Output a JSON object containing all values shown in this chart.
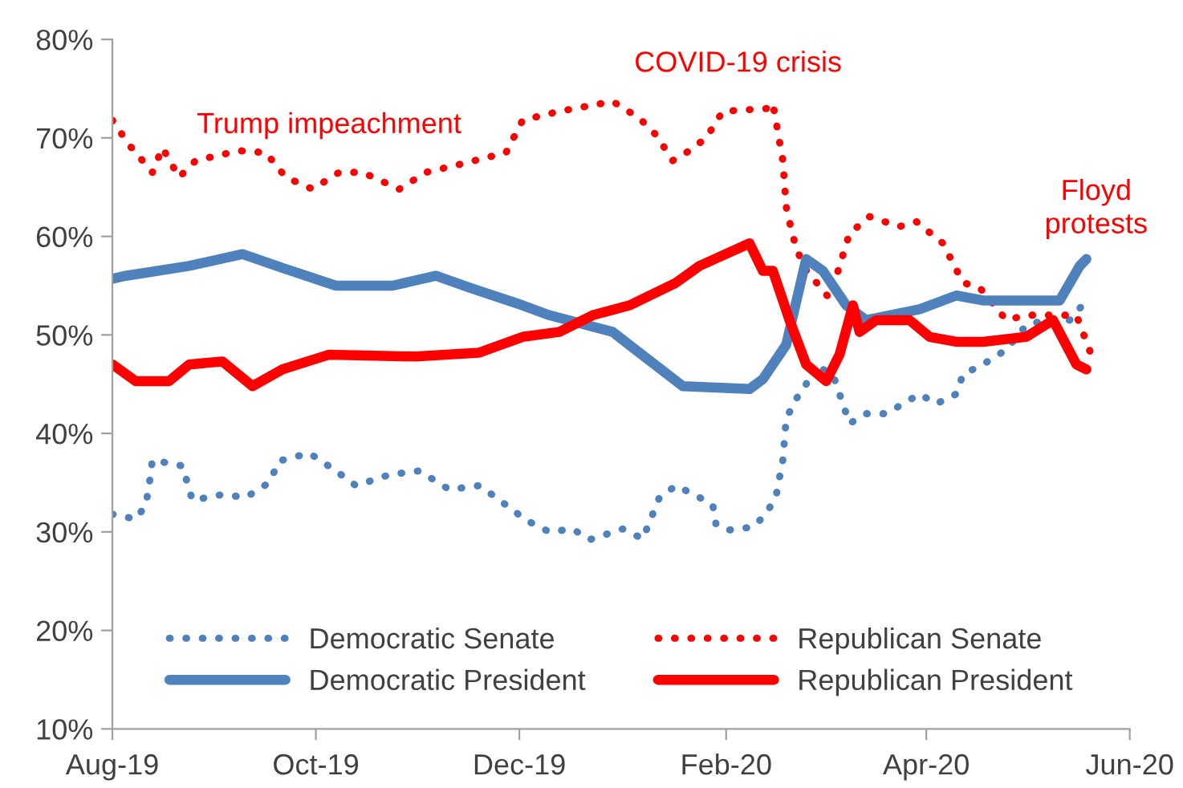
{
  "chart_data": {
    "type": "line",
    "legend": "bottom",
    "grid": false,
    "xlim": [
      "2019-08-01",
      "2020-06-01"
    ],
    "xticks": [
      {
        "value": "2019-08-01",
        "label": "Aug-19"
      },
      {
        "value": "2019-10-01",
        "label": "Oct-19"
      },
      {
        "value": "2019-12-01",
        "label": "Dec-19"
      },
      {
        "value": "2020-02-01",
        "label": "Feb-20"
      },
      {
        "value": "2020-04-01",
        "label": "Apr-20"
      },
      {
        "value": "2020-06-01",
        "label": "Jun-20"
      }
    ],
    "ylim": [
      10,
      80
    ],
    "yticks": [
      {
        "value": 10,
        "label": "10%"
      },
      {
        "value": 20,
        "label": "20%"
      },
      {
        "value": 30,
        "label": "30%"
      },
      {
        "value": 40,
        "label": "40%"
      },
      {
        "value": 50,
        "label": "50%"
      },
      {
        "value": 60,
        "label": "60%"
      },
      {
        "value": 70,
        "label": "70%"
      },
      {
        "value": 80,
        "label": "80%"
      }
    ],
    "annotations": [
      "Trump impeachment",
      "COVID-19 crisis",
      "Floyd\nprotests"
    ],
    "series": [
      {
        "name": "Democratic Senate",
        "color": "#4f81bd",
        "line_style": "dotted",
        "x": [
          "2019-08-01",
          "2019-08-08",
          "2019-08-11",
          "2019-08-12",
          "2019-08-13",
          "2019-08-22",
          "2019-08-25",
          "2019-09-03",
          "2019-09-10",
          "2019-09-17",
          "2019-09-20",
          "2019-09-29",
          "2019-10-07",
          "2019-10-13",
          "2019-10-23",
          "2019-11-01",
          "2019-11-10",
          "2019-11-19",
          "2019-11-24",
          "2019-12-03",
          "2019-12-10",
          "2019-12-17",
          "2019-12-22",
          "2020-01-01",
          "2020-01-07",
          "2020-01-12",
          "2020-01-17",
          "2020-01-24",
          "2020-01-28",
          "2020-01-29",
          "2020-02-02",
          "2020-02-09",
          "2020-02-13",
          "2020-02-16",
          "2020-02-17",
          "2020-02-18",
          "2020-02-19",
          "2020-02-22",
          "2020-02-25",
          "2020-02-27",
          "2020-03-04",
          "2020-03-09",
          "2020-03-14",
          "2020-03-20",
          "2020-03-25",
          "2020-03-30",
          "2020-04-04",
          "2020-04-10",
          "2020-04-12",
          "2020-04-18",
          "2020-04-25",
          "2020-05-01",
          "2020-05-07",
          "2020-05-14",
          "2020-05-19"
        ],
        "values": [
          31.8,
          31.3,
          32.7,
          34.7,
          37.3,
          36.7,
          33.2,
          33.8,
          33.5,
          35,
          37.2,
          38,
          36.2,
          34.7,
          35.8,
          36.2,
          34.3,
          34.7,
          33.5,
          31.2,
          30,
          30.3,
          29.2,
          30.3,
          29.3,
          33.5,
          34.7,
          33.5,
          32.7,
          30.7,
          30.2,
          30.5,
          31.8,
          33.7,
          35.5,
          37.3,
          41.5,
          43.5,
          45,
          47,
          46,
          41,
          42,
          42,
          43,
          44,
          43,
          44,
          46,
          47,
          48.5,
          51,
          51.5,
          51.5,
          53.5
        ]
      },
      {
        "name": "Republican Senate",
        "color": "#ff0000",
        "line_style": "dotted",
        "x": [
          "2019-08-01",
          "2019-08-06",
          "2019-08-13",
          "2019-08-16",
          "2019-08-21",
          "2019-08-26",
          "2019-09-08",
          "2019-09-16",
          "2019-09-22",
          "2019-09-30",
          "2019-10-08",
          "2019-10-15",
          "2019-10-26",
          "2019-11-03",
          "2019-11-13",
          "2019-11-27",
          "2019-12-02",
          "2019-12-13",
          "2019-12-29",
          "2020-01-06",
          "2020-01-11",
          "2020-01-16",
          "2020-01-21",
          "2020-01-26",
          "2020-01-31",
          "2020-02-05",
          "2020-02-14",
          "2020-02-15",
          "2020-02-18",
          "2020-02-19",
          "2020-02-21",
          "2020-02-24",
          "2020-03-03",
          "2020-03-09",
          "2020-03-15",
          "2020-03-24",
          "2020-03-29",
          "2020-04-06",
          "2020-04-12",
          "2020-04-17",
          "2020-04-25",
          "2020-05-01",
          "2020-05-16",
          "2020-05-19",
          "2020-05-21"
        ],
        "values": [
          71.8,
          69.3,
          66.5,
          69,
          66,
          67.7,
          68.7,
          68.5,
          66,
          64.8,
          66.5,
          66.5,
          64.8,
          66.5,
          67.3,
          68.5,
          71.8,
          72.7,
          73.7,
          72,
          70.3,
          67.7,
          68.7,
          70,
          72.7,
          72.8,
          73,
          73.5,
          67.7,
          63,
          60,
          57,
          53.7,
          60.3,
          62,
          61,
          61.5,
          59.3,
          55.3,
          54.8,
          51.5,
          52,
          52,
          49.3,
          47.5
        ]
      },
      {
        "name": "Democratic President",
        "color": "#4f81bd",
        "line_style": "solid",
        "x": [
          "2019-08-01",
          "2019-08-05",
          "2019-08-24",
          "2019-09-09",
          "2019-09-21",
          "2019-10-07",
          "2019-10-24",
          "2019-11-06",
          "2019-11-16",
          "2019-12-02",
          "2019-12-10",
          "2019-12-29",
          "2020-01-01",
          "2020-01-19",
          "2020-02-08",
          "2020-02-12",
          "2020-02-19",
          "2020-02-25",
          "2020-03-01",
          "2020-03-08",
          "2020-03-14",
          "2020-03-30",
          "2020-04-10",
          "2020-04-18",
          "2020-05-11",
          "2020-05-17",
          "2020-05-19"
        ],
        "values": [
          55.7,
          56,
          57,
          58.2,
          56.8,
          55,
          55,
          56,
          54.8,
          53,
          52,
          50.3,
          49.5,
          44.8,
          44.5,
          45.5,
          49,
          57.7,
          56.5,
          53,
          51.5,
          52.6,
          54,
          53.5,
          53.5,
          57,
          57.7
        ]
      },
      {
        "name": "Republican President",
        "color": "#ff0000",
        "line_style": "solid",
        "x": [
          "2019-08-01",
          "2019-08-08",
          "2019-08-18",
          "2019-08-24",
          "2019-09-03",
          "2019-09-12",
          "2019-09-21",
          "2019-10-05",
          "2019-10-31",
          "2019-11-19",
          "2019-12-02",
          "2019-12-13",
          "2019-12-23",
          "2020-01-03",
          "2020-01-17",
          "2020-01-24",
          "2020-02-08",
          "2020-02-12",
          "2020-02-15",
          "2020-02-20",
          "2020-02-25",
          "2020-03-02",
          "2020-03-06",
          "2020-03-10",
          "2020-03-12",
          "2020-03-17",
          "2020-03-27",
          "2020-04-02",
          "2020-04-10",
          "2020-04-18",
          "2020-05-01",
          "2020-05-09",
          "2020-05-16",
          "2020-05-19"
        ],
        "values": [
          47,
          45.3,
          45.3,
          47,
          47.3,
          44.8,
          46.5,
          48,
          47.8,
          48.2,
          49.8,
          50.3,
          52,
          53,
          55.3,
          57,
          59.3,
          56.5,
          56.5,
          51.5,
          47,
          45.3,
          48,
          53,
          50.3,
          51.5,
          51.5,
          49.8,
          49.3,
          49.3,
          49.8,
          51.5,
          47,
          46.5
        ]
      }
    ]
  }
}
